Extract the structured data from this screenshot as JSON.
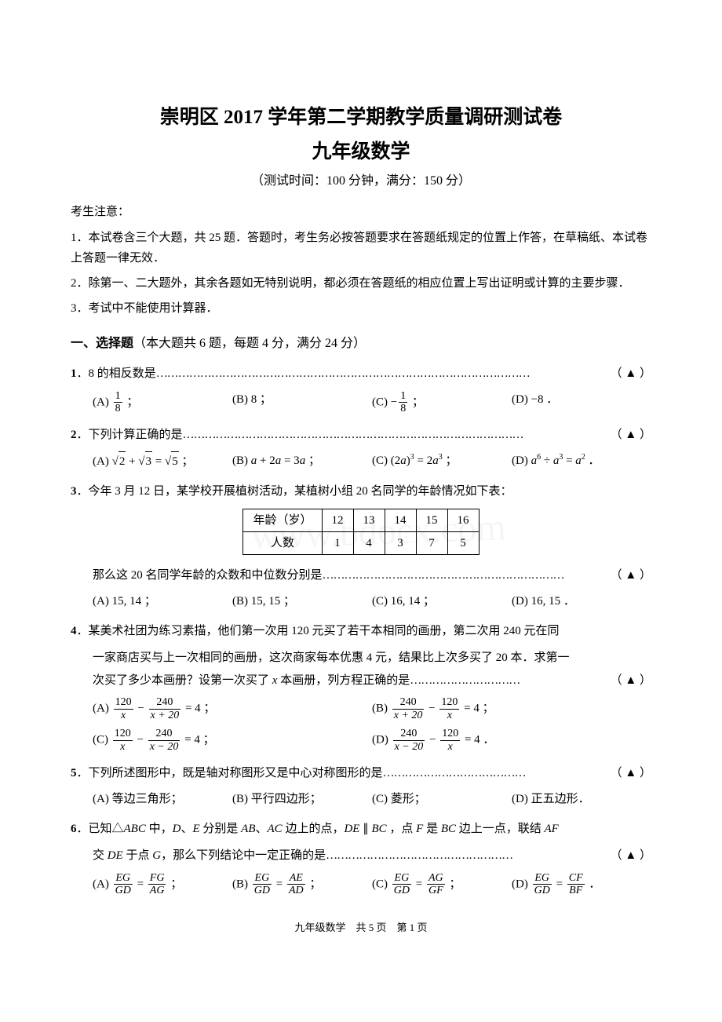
{
  "title1": "崇明区 2017 学年第二学期教学质量调研测试卷",
  "title2": "九年级数学",
  "subtitle": "（测试时间：100 分钟，满分：150 分）",
  "notice_head": "考生注意：",
  "notices": [
    "1．本试卷含三个大题，共 25 题．答题时，考生务必按答题要求在答题纸规定的位置上作答，在草稿纸、本试卷上答题一律无效．",
    "2．除第一、二大题外，其余各题如无特别说明，都必须在答题纸的相应位置上写出证明或计算的主要步骤．",
    "3．考试中不能使用计算器．"
  ],
  "section1_title_a": "一、选择题",
  "section1_title_b": "（本大题共 6 题，每题 4 分，满分 24 分）",
  "marker": "（ ▲ ）",
  "q1": {
    "num": "1",
    "text": "．8 的相反数是",
    "optA_pre": "(A) ",
    "optA_num": "1",
    "optA_den": "8",
    "optA_post": " ；",
    "optB": "(B) 8 ；",
    "optC_pre": "(C) −",
    "optC_num": "1",
    "optC_den": "8",
    "optC_post": " ；",
    "optD": "(D) −8 ．"
  },
  "q2": {
    "num": "2",
    "text": "．下列计算正确的是 ",
    "optA_pre": "(A) ",
    "optA_r1": "2",
    "optA_mid": " + ",
    "optA_r2": "3",
    "optA_mid2": " = ",
    "optA_r3": "5",
    "optA_post": " ；",
    "optB_html": "(B) <span class=\"italic\">a</span> + 2<span class=\"italic\">a</span> = 3<span class=\"italic\">a</span> ；",
    "optC_html": "(C) (2<span class=\"italic\">a</span>)<sup>3</sup> = 2<span class=\"italic\">a</span><sup>3</sup> ；",
    "optD_html": "(D) <span class=\"italic\">a</span><sup>6</sup> ÷ <span class=\"italic\">a</span><sup>3</sup> = <span class=\"italic\">a</span><sup>2</sup> ．"
  },
  "q3": {
    "num": "3",
    "text": "．今年 3 月 12 日，某学校开展植树活动，某植树小组 20 名同学的年龄情况如下表：",
    "table_head": "年龄（岁）",
    "table_head2": "人数",
    "ages": [
      "12",
      "13",
      "14",
      "15",
      "16"
    ],
    "counts": [
      "1",
      "4",
      "3",
      "7",
      "5"
    ],
    "text2": "那么这 20 名同学年龄的众数和中位数分别是",
    "optA": "(A) 15, 14 ；",
    "optB": "(B) 15, 15 ；",
    "optC": "(C) 16, 14 ；",
    "optD": "(D) 16, 15 ．"
  },
  "q4": {
    "num": "4",
    "line1": "．某美术社团为练习素描，他们第一次用 120 元买了若干本相同的画册，第二次用 240 元在同",
    "line2": "一家商店买与上一次相同的画册，这次商家每本优惠 4 元，结果比上次多买了 20 本．求第一",
    "line3_html": "次买了多少本画册？设第一次买了 <span class=\"italic\">x</span> 本画册，列方程正确的是 ",
    "optA": {
      "pre": "(A) ",
      "n1": "120",
      "d1": "x",
      "mid": " − ",
      "n2": "240",
      "d2": "x + 20",
      "post": " = 4 ；"
    },
    "optB": {
      "pre": "(B) ",
      "n1": "240",
      "d1": "x + 20",
      "mid": " − ",
      "n2": "120",
      "d2": "x",
      "post": " = 4 ；"
    },
    "optC": {
      "pre": "(C) ",
      "n1": "120",
      "d1": "x",
      "mid": " − ",
      "n2": "240",
      "d2": "x − 20",
      "post": " = 4 ；"
    },
    "optD": {
      "pre": "(D) ",
      "n1": "240",
      "d1": "x − 20",
      "mid": " − ",
      "n2": "120",
      "d2": "x",
      "post": " = 4 ．"
    }
  },
  "q5": {
    "num": "5",
    "text": "．下列所述图形中，既是轴对称图形又是中心对称图形的是 ",
    "optA": "(A) 等边三角形；",
    "optB": "(B) 平行四边形；",
    "optC": "(C) 菱形；",
    "optD": "(D) 正五边形．"
  },
  "q6": {
    "num": "6",
    "line1_html": "．已知△<span class=\"italic\">ABC</span> 中，<span class=\"italic\">D</span>、<span class=\"italic\">E</span> 分别是 <span class=\"italic\">AB</span>、<span class=\"italic\">AC</span> 边上的点，<span class=\"italic\">DE</span> ∥ <span class=\"italic\">BC</span> ，点 <span class=\"italic\">F</span> 是 <span class=\"italic\">BC</span> 边上一点，联结 <span class=\"italic\">AF</span>",
    "line2_html": "交 <span class=\"italic\">DE</span> 于点 <span class=\"italic\">G</span>，那么下列结论中一定正确的是 ",
    "optA": {
      "pre": "(A) ",
      "n1": "EG",
      "d1": "GD",
      "mid": " = ",
      "n2": "FG",
      "d2": "AG",
      "post": " ；"
    },
    "optB": {
      "pre": "(B) ",
      "n1": "EG",
      "d1": "GD",
      "mid": " = ",
      "n2": "AE",
      "d2": "AD",
      "post": " ；"
    },
    "optC": {
      "pre": "(C) ",
      "n1": "EG",
      "d1": "GD",
      "mid": " = ",
      "n2": "AG",
      "d2": "GF",
      "post": " ；"
    },
    "optD": {
      "pre": "(D) ",
      "n1": "EG",
      "d1": "GD",
      "mid": " = ",
      "n2": "CF",
      "d2": "BF",
      "post": " ．"
    }
  },
  "footer": "九年级数学　共 5 页　第 1 页",
  "watermark": "www.bdocx.com"
}
